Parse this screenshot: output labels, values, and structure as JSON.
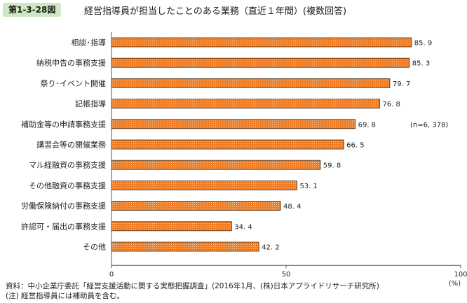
{
  "figure": {
    "number": "第1-3-28図",
    "title": "経営指導員が担当したことのある業務（直近１年間）(複数回答)"
  },
  "chart_data": {
    "type": "bar",
    "orientation": "horizontal",
    "categories": [
      "相談･指導",
      "納税申告の事務支援",
      "祭り･イベント開催",
      "記帳指導",
      "補助金等の申請事務支援",
      "講習会等の開催業務",
      "マル経融資の事務支援",
      "その他融資の事務支援",
      "労働保険納付の事務支援",
      "許認可・届出の事務支援",
      "その他"
    ],
    "values": [
      85.9,
      85.3,
      79.7,
      76.8,
      69.8,
      66.5,
      59.8,
      53.1,
      48.4,
      34.4,
      42.2
    ],
    "value_labels": [
      "85. 9",
      "85. 3",
      "79. 7",
      "76. 8",
      "69. 8",
      "66. 5",
      "59. 8",
      "53. 1",
      "48. 4",
      "34. 4",
      "42. 2"
    ],
    "xlim": [
      0,
      100
    ],
    "x_ticks": [
      "0",
      "50",
      "100"
    ],
    "unit_label": "(%)",
    "sample_note": "(n=6, 378)",
    "bar_fill": "#f07c22",
    "bar_border": "#3a2a1a",
    "grid": false
  },
  "notes": {
    "source": "資料：中小企業庁委託「経営支援活動に関する実態把握調査」(2016年1月、(株)日本アプライドリサーチ研究所)",
    "note": "(注) 経営指導員には補助員を含む。"
  }
}
